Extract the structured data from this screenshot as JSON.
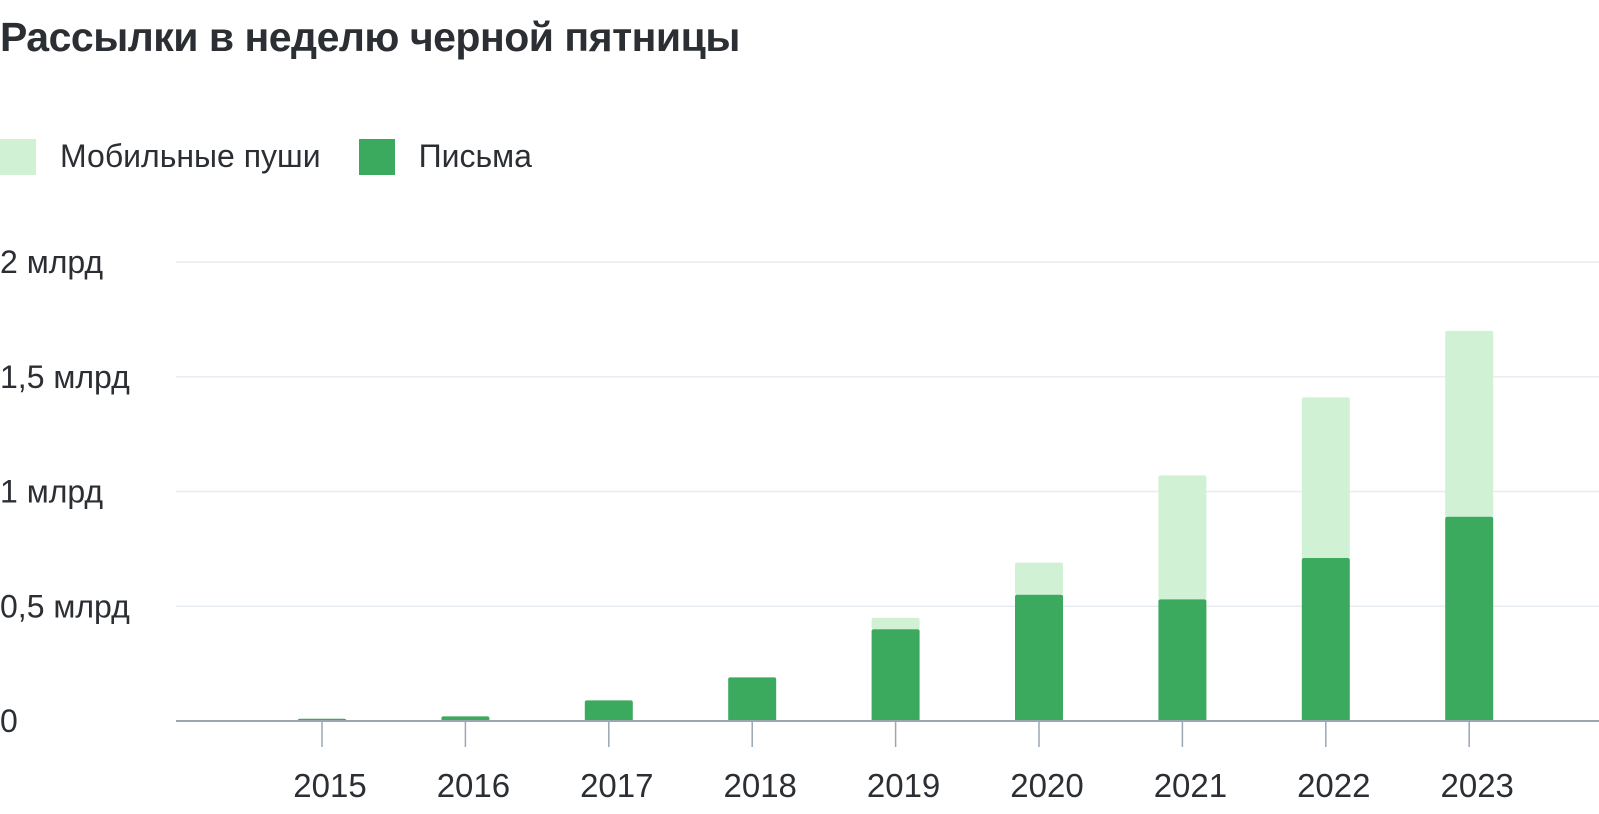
{
  "title": "Рассылки в неделю черной пятницы",
  "colors": {
    "pushes": "#d1f1d4",
    "letters": "#3ba95e",
    "grid": "#e6ecf2",
    "axis": "#9aa6b2"
  },
  "chart_data": {
    "type": "bar",
    "stacked": true,
    "title": "Рассылки в неделю черной пятницы",
    "categories": [
      "2015",
      "2016",
      "2017",
      "2018",
      "2019",
      "2020",
      "2021",
      "2022",
      "2023"
    ],
    "series": [
      {
        "name": "Письма",
        "values": [
          0.01,
          0.02,
          0.09,
          0.19,
          0.4,
          0.55,
          0.53,
          0.71,
          0.89
        ]
      },
      {
        "name": "Мобильные пуши",
        "values": [
          0,
          0,
          0,
          0,
          0.05,
          0.14,
          0.54,
          0.7,
          0.81
        ]
      }
    ],
    "legend": [
      "Мобильные пуши",
      "Письма"
    ],
    "legend_position": "top-left",
    "ylim": [
      0,
      2
    ],
    "yticks": [
      0,
      0.5,
      1,
      1.5,
      2
    ],
    "ytick_labels": [
      "0",
      "0,5 млрд",
      "1 млрд",
      "1,5 млрд",
      "2 млрд"
    ],
    "grid": true
  }
}
